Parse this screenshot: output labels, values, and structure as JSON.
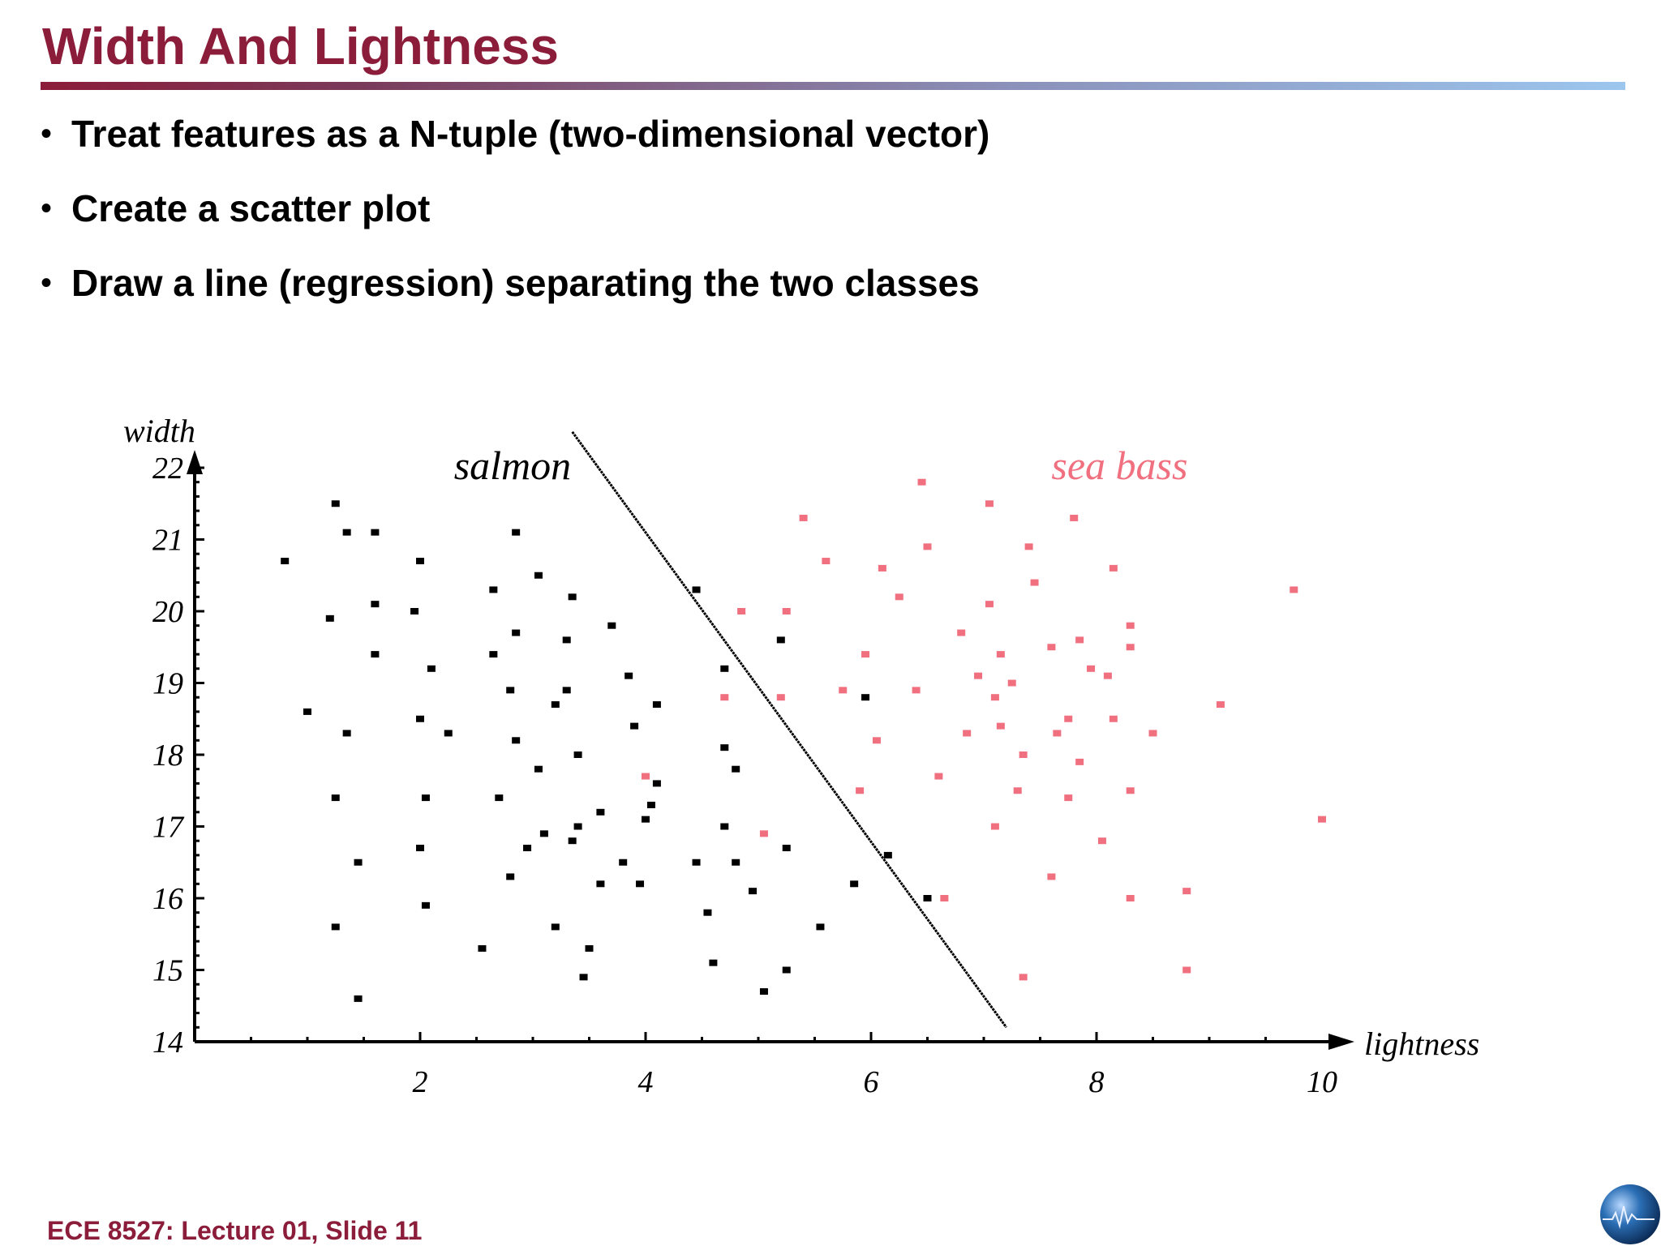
{
  "slide": {
    "title": "Width And Lightness",
    "bullets": [
      "Treat features as a N-tuple (two-dimensional vector)",
      "Create a scatter plot",
      "Draw a line (regression) separating the two classes"
    ],
    "bullet_symbol": "•",
    "footer": "ECE 8527: Lecture 01, Slide 11",
    "colors": {
      "title": "#8b1d3a",
      "salmon": "#000000",
      "seabass": "#f07080"
    },
    "logo_icon": "globe-logo-icon"
  },
  "chart_data": {
    "type": "scatter",
    "title": "",
    "xlabel": "lightness",
    "ylabel": "width",
    "xlim": [
      0,
      10
    ],
    "ylim": [
      14,
      22
    ],
    "x_ticks": [
      "2",
      "4",
      "6",
      "8",
      "10"
    ],
    "y_ticks": [
      "14",
      "15",
      "16",
      "17",
      "18",
      "19",
      "20",
      "21",
      "22"
    ],
    "x_tick_values": [
      2,
      4,
      6,
      8,
      10
    ],
    "y_tick_values": [
      14,
      15,
      16,
      17,
      18,
      19,
      20,
      21,
      22
    ],
    "grid": false,
    "series": [
      {
        "name": "salmon",
        "color": "#000000",
        "points": [
          [
            0.8,
            20.7
          ],
          [
            1.2,
            19.9
          ],
          [
            1.0,
            18.6
          ],
          [
            1.25,
            21.5
          ],
          [
            1.35,
            21.1
          ],
          [
            1.6,
            21.1
          ],
          [
            1.6,
            20.1
          ],
          [
            1.6,
            19.4
          ],
          [
            1.35,
            18.3
          ],
          [
            1.25,
            17.4
          ],
          [
            1.45,
            16.5
          ],
          [
            1.25,
            15.6
          ],
          [
            1.45,
            14.6
          ],
          [
            2.0,
            20.7
          ],
          [
            1.95,
            20.0
          ],
          [
            2.1,
            19.2
          ],
          [
            2.0,
            18.5
          ],
          [
            2.25,
            18.3
          ],
          [
            2.05,
            17.4
          ],
          [
            2.0,
            16.7
          ],
          [
            2.05,
            15.9
          ],
          [
            2.55,
            15.3
          ],
          [
            2.65,
            20.3
          ],
          [
            2.85,
            21.1
          ],
          [
            2.85,
            19.7
          ],
          [
            2.65,
            19.4
          ],
          [
            2.8,
            18.9
          ],
          [
            2.85,
            18.2
          ],
          [
            2.7,
            17.4
          ],
          [
            3.05,
            17.8
          ],
          [
            3.05,
            20.5
          ],
          [
            3.35,
            20.2
          ],
          [
            3.3,
            19.6
          ],
          [
            3.3,
            18.9
          ],
          [
            3.2,
            18.7
          ],
          [
            3.4,
            18.0
          ],
          [
            2.8,
            16.3
          ],
          [
            2.95,
            16.7
          ],
          [
            3.1,
            16.9
          ],
          [
            3.35,
            16.8
          ],
          [
            3.4,
            17.0
          ],
          [
            3.6,
            17.2
          ],
          [
            3.2,
            15.6
          ],
          [
            3.6,
            16.2
          ],
          [
            3.5,
            15.3
          ],
          [
            3.45,
            14.9
          ],
          [
            3.7,
            19.8
          ],
          [
            3.85,
            19.1
          ],
          [
            3.9,
            18.4
          ],
          [
            4.1,
            18.7
          ],
          [
            4.1,
            17.6
          ],
          [
            4.05,
            17.3
          ],
          [
            4.0,
            17.1
          ],
          [
            3.8,
            16.5
          ],
          [
            3.95,
            16.2
          ],
          [
            4.45,
            20.3
          ],
          [
            4.45,
            16.5
          ],
          [
            4.55,
            15.8
          ],
          [
            4.6,
            15.1
          ],
          [
            4.7,
            19.2
          ],
          [
            4.7,
            18.1
          ],
          [
            4.8,
            17.8
          ],
          [
            4.7,
            17.0
          ],
          [
            4.8,
            16.5
          ],
          [
            4.95,
            16.1
          ],
          [
            5.05,
            14.7
          ],
          [
            5.2,
            19.6
          ],
          [
            5.25,
            16.7
          ],
          [
            5.25,
            15.0
          ],
          [
            5.55,
            15.6
          ],
          [
            5.85,
            16.2
          ],
          [
            5.95,
            18.8
          ],
          [
            6.15,
            16.6
          ],
          [
            6.5,
            16.0
          ]
        ]
      },
      {
        "name": "sea bass",
        "color": "#f07080",
        "points": [
          [
            4.0,
            17.7
          ],
          [
            4.7,
            18.8
          ],
          [
            4.85,
            20.0
          ],
          [
            5.05,
            16.9
          ],
          [
            5.2,
            18.8
          ],
          [
            5.25,
            20.0
          ],
          [
            5.4,
            21.3
          ],
          [
            5.6,
            20.7
          ],
          [
            5.75,
            18.9
          ],
          [
            5.9,
            17.5
          ],
          [
            5.95,
            19.4
          ],
          [
            6.05,
            18.2
          ],
          [
            6.1,
            20.6
          ],
          [
            6.25,
            20.2
          ],
          [
            6.4,
            18.9
          ],
          [
            6.45,
            21.8
          ],
          [
            6.5,
            20.9
          ],
          [
            6.6,
            17.7
          ],
          [
            6.65,
            16.0
          ],
          [
            6.8,
            19.7
          ],
          [
            6.85,
            18.3
          ],
          [
            6.95,
            19.1
          ],
          [
            7.05,
            21.5
          ],
          [
            7.05,
            20.1
          ],
          [
            7.15,
            19.4
          ],
          [
            7.1,
            18.8
          ],
          [
            7.15,
            18.4
          ],
          [
            7.1,
            17.0
          ],
          [
            7.25,
            19.0
          ],
          [
            7.3,
            17.5
          ],
          [
            7.35,
            18.0
          ],
          [
            7.4,
            20.9
          ],
          [
            7.45,
            20.4
          ],
          [
            7.35,
            14.9
          ],
          [
            7.6,
            19.5
          ],
          [
            7.65,
            18.3
          ],
          [
            7.6,
            16.3
          ],
          [
            7.8,
            21.3
          ],
          [
            7.75,
            18.5
          ],
          [
            7.75,
            17.4
          ],
          [
            7.85,
            19.6
          ],
          [
            7.85,
            17.9
          ],
          [
            7.95,
            19.2
          ],
          [
            8.05,
            16.8
          ],
          [
            8.1,
            19.1
          ],
          [
            8.15,
            20.6
          ],
          [
            8.15,
            18.5
          ],
          [
            8.3,
            19.8
          ],
          [
            8.3,
            19.5
          ],
          [
            8.3,
            17.5
          ],
          [
            8.3,
            16.0
          ],
          [
            8.5,
            18.3
          ],
          [
            8.8,
            16.1
          ],
          [
            8.8,
            15.0
          ],
          [
            9.1,
            18.7
          ],
          [
            9.75,
            20.3
          ],
          [
            10.0,
            17.1
          ]
        ]
      }
    ],
    "annotations": [
      {
        "text": "salmon",
        "x": 2.3,
        "y": 22.0,
        "color": "#000000"
      },
      {
        "text": "sea bass",
        "x": 7.6,
        "y": 22.0,
        "color": "#f07080"
      }
    ],
    "decision_line": {
      "x": [
        3.35,
        7.2
      ],
      "y": [
        22.5,
        14.2
      ]
    }
  }
}
